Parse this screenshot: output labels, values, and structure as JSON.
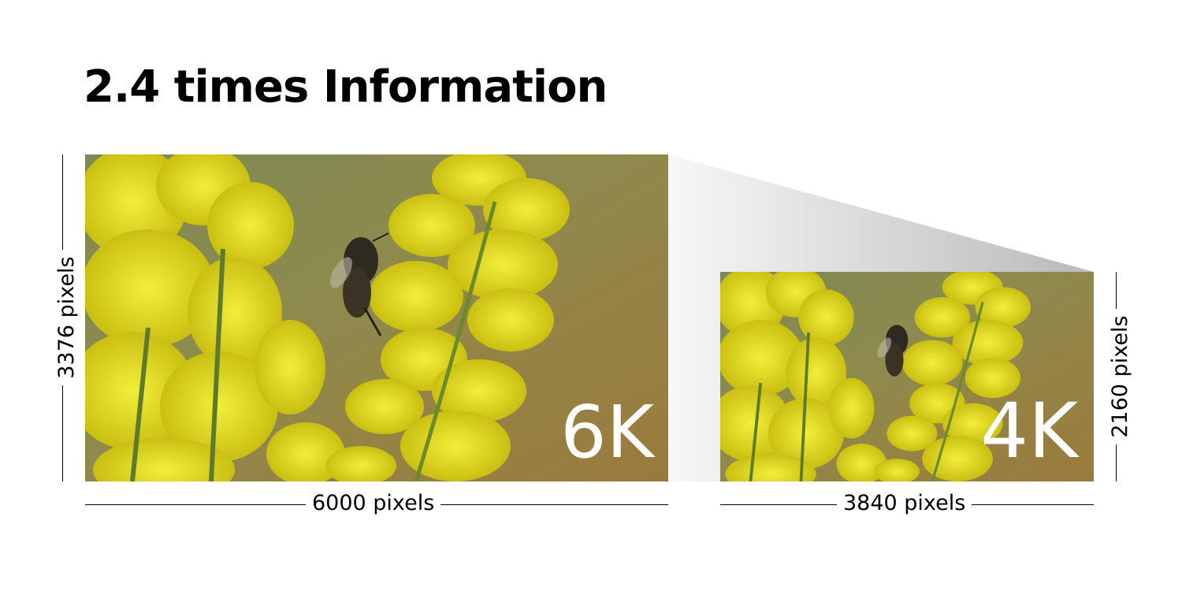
{
  "title": "2.4 times Information",
  "panels": [
    {
      "resolution_label": "6K",
      "width_label": "6000 pixels",
      "height_label": "3376 pixels"
    },
    {
      "resolution_label": "4K",
      "width_label": "3840 pixels",
      "height_label": "2160 pixels"
    }
  ],
  "colors": {
    "flower_yellow": "#e4e021",
    "background_blur": "#8c7a3a",
    "connector_gray": "#c8c8c8"
  }
}
